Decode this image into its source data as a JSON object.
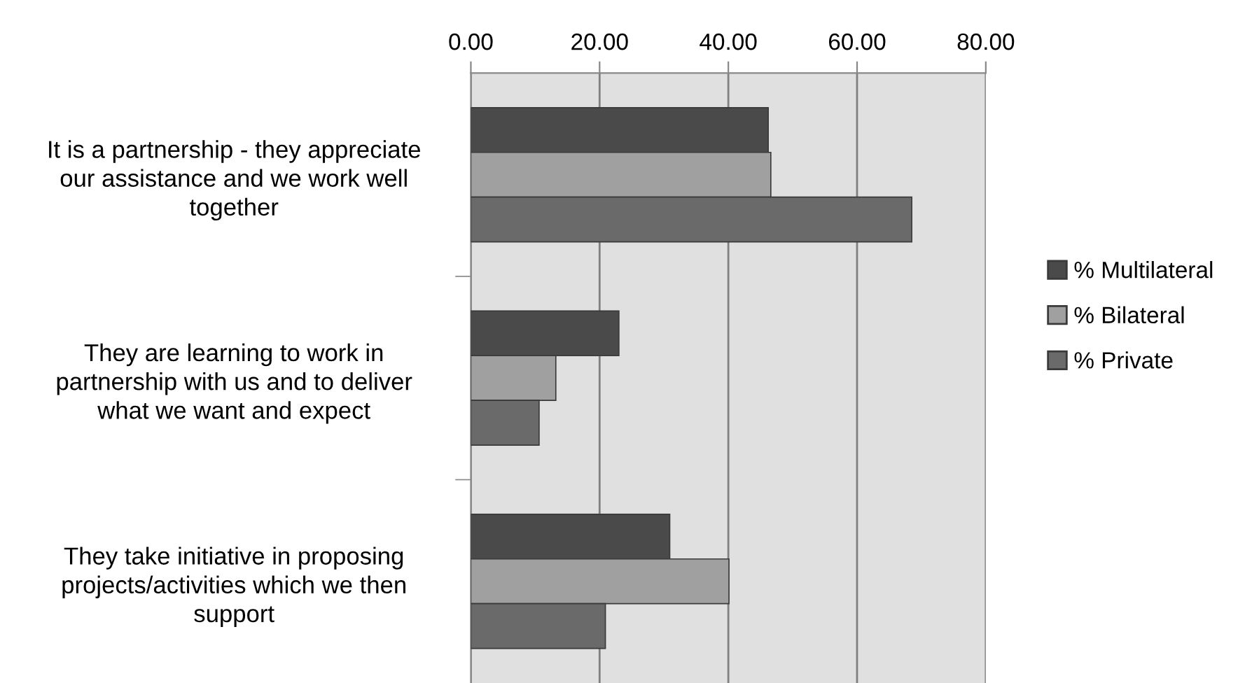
{
  "chart_data": {
    "type": "bar",
    "orientation": "horizontal",
    "categories": [
      "It is a partnership - they appreciate\nour assistance and we work well\ntogether",
      "They are learning to work in\npartnership with us and to deliver\nwhat we want and expect",
      "They take initiative in proposing\nprojects/activities which we then\nsupport"
    ],
    "series": [
      {
        "name": "% Multilateral",
        "color": "#4a4a4a",
        "values": [
          46.2,
          23.0,
          30.9
        ]
      },
      {
        "name": "% Bilateral",
        "color": "#a0a0a0",
        "values": [
          46.6,
          13.2,
          40.1
        ]
      },
      {
        "name": "% Private",
        "color": "#6a6a6a",
        "values": [
          68.5,
          10.6,
          20.9
        ]
      }
    ],
    "xlim": [
      0,
      80
    ],
    "xticks": [
      {
        "value": 0,
        "label": "0.00"
      },
      {
        "value": 20,
        "label": "20.00"
      },
      {
        "value": 40,
        "label": "40.00"
      },
      {
        "value": 60,
        "label": "60.00"
      },
      {
        "value": 80,
        "label": "80.00"
      }
    ],
    "grid": "x",
    "legend": "right"
  }
}
